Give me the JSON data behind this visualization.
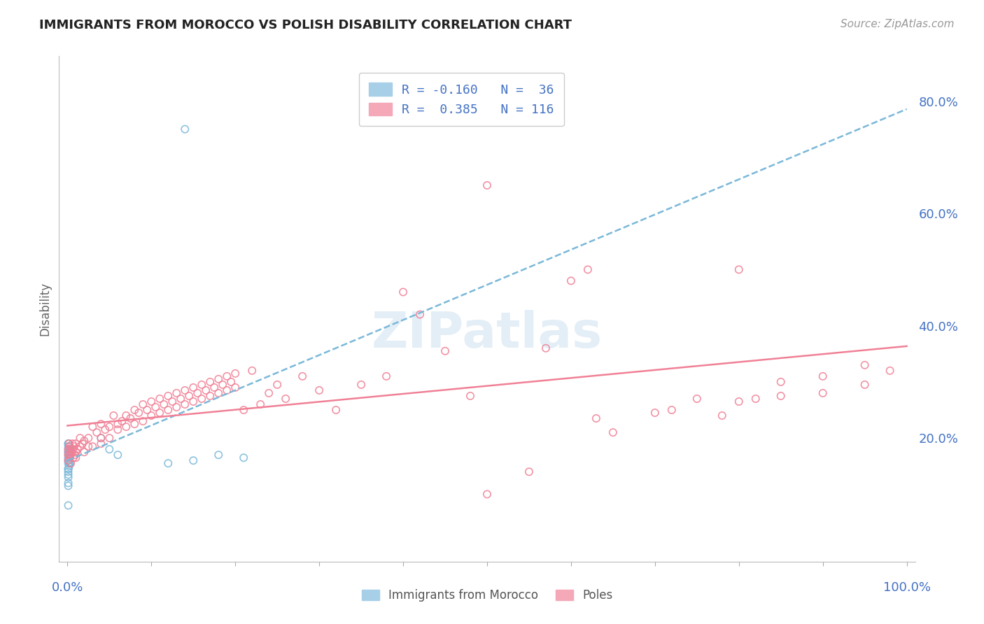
{
  "title": "IMMIGRANTS FROM MOROCCO VS POLISH DISABILITY CORRELATION CHART",
  "source": "Source: ZipAtlas.com",
  "ylabel": "Disability",
  "morocco_color": "#7ab8d9",
  "morocco_fill": "#a8cfe8",
  "poles_color": "#f08096",
  "poles_fill": "#f4a8b8",
  "background_color": "#ffffff",
  "grid_color": "#cccccc",
  "title_color": "#222222",
  "source_color": "#999999",
  "axis_label_color": "#4472c4",
  "R_morocco": -0.16,
  "N_morocco": 36,
  "R_poles": 0.385,
  "N_poles": 116,
  "morocco_data": [
    [
      0.001,
      0.165
    ],
    [
      0.002,
      0.155
    ],
    [
      0.001,
      0.175
    ],
    [
      0.001,
      0.19
    ],
    [
      0.001,
      0.16
    ],
    [
      0.002,
      0.15
    ],
    [
      0.003,
      0.17
    ],
    [
      0.002,
      0.18
    ],
    [
      0.001,
      0.145
    ],
    [
      0.002,
      0.185
    ],
    [
      0.003,
      0.155
    ],
    [
      0.001,
      0.17
    ],
    [
      0.002,
      0.165
    ],
    [
      0.003,
      0.18
    ],
    [
      0.001,
      0.16
    ],
    [
      0.002,
      0.175
    ],
    [
      0.04,
      0.2
    ],
    [
      0.05,
      0.18
    ],
    [
      0.06,
      0.17
    ],
    [
      0.001,
      0.155
    ],
    [
      0.12,
      0.155
    ],
    [
      0.15,
      0.16
    ],
    [
      0.18,
      0.17
    ],
    [
      0.21,
      0.165
    ],
    [
      0.001,
      0.13
    ],
    [
      0.001,
      0.14
    ],
    [
      0.001,
      0.145
    ],
    [
      0.001,
      0.135
    ],
    [
      0.001,
      0.175
    ],
    [
      0.001,
      0.185
    ],
    [
      0.001,
      0.19
    ],
    [
      0.001,
      0.18
    ],
    [
      0.001,
      0.12
    ],
    [
      0.001,
      0.115
    ],
    [
      0.001,
      0.08
    ],
    [
      0.14,
      0.75
    ]
  ],
  "poles_data": [
    [
      0.001,
      0.17
    ],
    [
      0.001,
      0.18
    ],
    [
      0.001,
      0.16
    ],
    [
      0.002,
      0.19
    ],
    [
      0.002,
      0.175
    ],
    [
      0.003,
      0.165
    ],
    [
      0.003,
      0.185
    ],
    [
      0.004,
      0.17
    ],
    [
      0.004,
      0.155
    ],
    [
      0.005,
      0.175
    ],
    [
      0.005,
      0.18
    ],
    [
      0.006,
      0.19
    ],
    [
      0.007,
      0.165
    ],
    [
      0.007,
      0.18
    ],
    [
      0.008,
      0.185
    ],
    [
      0.009,
      0.17
    ],
    [
      0.01,
      0.19
    ],
    [
      0.01,
      0.175
    ],
    [
      0.01,
      0.165
    ],
    [
      0.012,
      0.18
    ],
    [
      0.015,
      0.2
    ],
    [
      0.015,
      0.185
    ],
    [
      0.018,
      0.19
    ],
    [
      0.02,
      0.195
    ],
    [
      0.02,
      0.175
    ],
    [
      0.025,
      0.185
    ],
    [
      0.025,
      0.2
    ],
    [
      0.03,
      0.22
    ],
    [
      0.03,
      0.185
    ],
    [
      0.035,
      0.21
    ],
    [
      0.04,
      0.2
    ],
    [
      0.04,
      0.225
    ],
    [
      0.04,
      0.19
    ],
    [
      0.045,
      0.215
    ],
    [
      0.05,
      0.22
    ],
    [
      0.05,
      0.2
    ],
    [
      0.055,
      0.24
    ],
    [
      0.06,
      0.225
    ],
    [
      0.06,
      0.215
    ],
    [
      0.065,
      0.23
    ],
    [
      0.07,
      0.24
    ],
    [
      0.07,
      0.22
    ],
    [
      0.075,
      0.235
    ],
    [
      0.08,
      0.25
    ],
    [
      0.08,
      0.225
    ],
    [
      0.085,
      0.245
    ],
    [
      0.09,
      0.26
    ],
    [
      0.09,
      0.23
    ],
    [
      0.095,
      0.25
    ],
    [
      0.1,
      0.265
    ],
    [
      0.1,
      0.24
    ],
    [
      0.105,
      0.255
    ],
    [
      0.11,
      0.27
    ],
    [
      0.11,
      0.245
    ],
    [
      0.115,
      0.26
    ],
    [
      0.12,
      0.275
    ],
    [
      0.12,
      0.25
    ],
    [
      0.125,
      0.265
    ],
    [
      0.13,
      0.28
    ],
    [
      0.13,
      0.255
    ],
    [
      0.135,
      0.27
    ],
    [
      0.14,
      0.285
    ],
    [
      0.14,
      0.26
    ],
    [
      0.145,
      0.275
    ],
    [
      0.15,
      0.29
    ],
    [
      0.15,
      0.265
    ],
    [
      0.155,
      0.28
    ],
    [
      0.16,
      0.295
    ],
    [
      0.16,
      0.27
    ],
    [
      0.165,
      0.285
    ],
    [
      0.17,
      0.3
    ],
    [
      0.17,
      0.275
    ],
    [
      0.175,
      0.29
    ],
    [
      0.18,
      0.305
    ],
    [
      0.18,
      0.28
    ],
    [
      0.185,
      0.295
    ],
    [
      0.19,
      0.31
    ],
    [
      0.19,
      0.285
    ],
    [
      0.195,
      0.3
    ],
    [
      0.2,
      0.315
    ],
    [
      0.2,
      0.29
    ],
    [
      0.21,
      0.25
    ],
    [
      0.22,
      0.32
    ],
    [
      0.23,
      0.26
    ],
    [
      0.24,
      0.28
    ],
    [
      0.25,
      0.295
    ],
    [
      0.26,
      0.27
    ],
    [
      0.28,
      0.31
    ],
    [
      0.3,
      0.285
    ],
    [
      0.32,
      0.25
    ],
    [
      0.35,
      0.295
    ],
    [
      0.38,
      0.31
    ],
    [
      0.4,
      0.46
    ],
    [
      0.42,
      0.42
    ],
    [
      0.45,
      0.355
    ],
    [
      0.48,
      0.275
    ],
    [
      0.5,
      0.1
    ],
    [
      0.55,
      0.14
    ],
    [
      0.57,
      0.36
    ],
    [
      0.6,
      0.48
    ],
    [
      0.63,
      0.235
    ],
    [
      0.65,
      0.21
    ],
    [
      0.7,
      0.245
    ],
    [
      0.72,
      0.25
    ],
    [
      0.75,
      0.27
    ],
    [
      0.78,
      0.24
    ],
    [
      0.8,
      0.265
    ],
    [
      0.82,
      0.27
    ],
    [
      0.85,
      0.275
    ],
    [
      0.9,
      0.28
    ],
    [
      0.95,
      0.295
    ],
    [
      0.5,
      0.65
    ],
    [
      0.62,
      0.5
    ],
    [
      0.8,
      0.5
    ],
    [
      0.85,
      0.3
    ],
    [
      0.9,
      0.31
    ],
    [
      0.95,
      0.33
    ],
    [
      0.98,
      0.32
    ]
  ]
}
